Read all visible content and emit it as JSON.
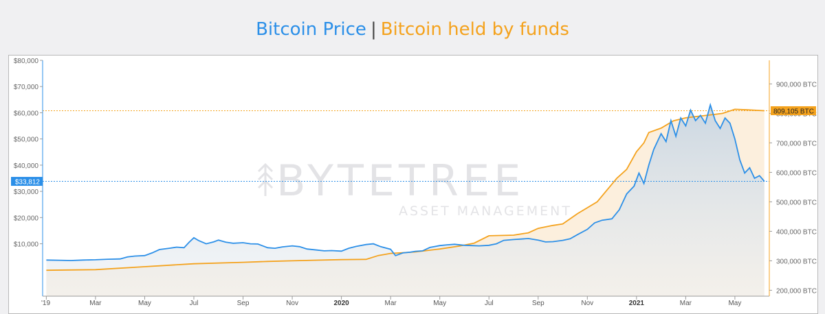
{
  "header": {
    "title_left": "Bitcoin Price",
    "separator": "|",
    "title_right": "Bitcoin held by funds"
  },
  "watermark": {
    "brand": "BYTETREE",
    "subtitle": "ASSET MANAGEMENT"
  },
  "colors": {
    "price": "#2b8fe8",
    "holdings": "#f4a21d",
    "holdings_fill": "#fbe9d2",
    "price_fill": "#d7e0e8"
  },
  "chart_data": {
    "type": "line",
    "title": "Bitcoin Price | Bitcoin held by funds",
    "x_ticks": [
      {
        "label": "'19",
        "t": 0
      },
      {
        "label": "Mar",
        "t": 2
      },
      {
        "label": "May",
        "t": 4
      },
      {
        "label": "Jul",
        "t": 6
      },
      {
        "label": "Sep",
        "t": 8
      },
      {
        "label": "Nov",
        "t": 10
      },
      {
        "label": "2020",
        "t": 12,
        "bold": true
      },
      {
        "label": "Mar",
        "t": 14
      },
      {
        "label": "May",
        "t": 16
      },
      {
        "label": "Jul",
        "t": 18
      },
      {
        "label": "Sep",
        "t": 20
      },
      {
        "label": "Nov",
        "t": 22
      },
      {
        "label": "2021",
        "t": 24,
        "bold": true
      },
      {
        "label": "Mar",
        "t": 26
      },
      {
        "label": "May",
        "t": 28
      }
    ],
    "x_range": [
      -0.15,
      29.4
    ],
    "left_axis": {
      "range": [
        -10000,
        80000
      ],
      "ticks": [
        10000,
        20000,
        30000,
        40000,
        50000,
        60000,
        70000,
        80000
      ],
      "tick_labels": [
        "$10,000",
        "$20,000",
        "$30,000",
        "$40,000",
        "$50,000",
        "$60,000",
        "$70,000",
        "$80,000"
      ]
    },
    "right_axis": {
      "range": [
        180000,
        980000
      ],
      "ticks": [
        200000,
        300000,
        400000,
        500000,
        600000,
        700000,
        800000,
        900000
      ],
      "tick_labels": [
        "200,000 BTC",
        "300,000 BTC",
        "400,000 BTC",
        "500,000 BTC",
        "600,000 BTC",
        "700,000 BTC",
        "800,000 BTC",
        "900,000 BTC"
      ]
    },
    "current_price": {
      "label": "$33,812",
      "value": 33812
    },
    "current_holdings": {
      "label": "809,105 BTC",
      "value": 809105
    },
    "series": [
      {
        "name": "Bitcoin Price",
        "axis": "left",
        "points": [
          [
            0,
            3800
          ],
          [
            0.5,
            3700
          ],
          [
            1,
            3600
          ],
          [
            1.5,
            3800
          ],
          [
            2,
            3900
          ],
          [
            2.5,
            4100
          ],
          [
            3,
            4200
          ],
          [
            3.3,
            5000
          ],
          [
            3.6,
            5300
          ],
          [
            4,
            5500
          ],
          [
            4.3,
            6500
          ],
          [
            4.6,
            7800
          ],
          [
            5,
            8300
          ],
          [
            5.3,
            8700
          ],
          [
            5.6,
            8500
          ],
          [
            5.8,
            10500
          ],
          [
            6,
            12300
          ],
          [
            6.2,
            11200
          ],
          [
            6.5,
            10000
          ],
          [
            6.8,
            10700
          ],
          [
            7,
            11400
          ],
          [
            7.3,
            10600
          ],
          [
            7.6,
            10200
          ],
          [
            8,
            10400
          ],
          [
            8.3,
            10000
          ],
          [
            8.6,
            9900
          ],
          [
            9,
            8500
          ],
          [
            9.3,
            8300
          ],
          [
            9.6,
            8800
          ],
          [
            10,
            9200
          ],
          [
            10.3,
            8900
          ],
          [
            10.6,
            8000
          ],
          [
            11,
            7600
          ],
          [
            11.3,
            7300
          ],
          [
            11.6,
            7400
          ],
          [
            12,
            7200
          ],
          [
            12.3,
            8300
          ],
          [
            12.6,
            9000
          ],
          [
            13,
            9700
          ],
          [
            13.3,
            10000
          ],
          [
            13.6,
            8900
          ],
          [
            14,
            7900
          ],
          [
            14.2,
            5500
          ],
          [
            14.5,
            6500
          ],
          [
            14.8,
            6800
          ],
          [
            15,
            7100
          ],
          [
            15.3,
            7300
          ],
          [
            15.6,
            8600
          ],
          [
            16,
            9300
          ],
          [
            16.3,
            9600
          ],
          [
            16.6,
            9800
          ],
          [
            17,
            9400
          ],
          [
            17.3,
            9300
          ],
          [
            17.6,
            9200
          ],
          [
            18,
            9400
          ],
          [
            18.3,
            10000
          ],
          [
            18.6,
            11300
          ],
          [
            19,
            11600
          ],
          [
            19.3,
            11800
          ],
          [
            19.6,
            12000
          ],
          [
            20,
            11400
          ],
          [
            20.3,
            10700
          ],
          [
            20.6,
            10800
          ],
          [
            21,
            11300
          ],
          [
            21.3,
            11900
          ],
          [
            21.6,
            13500
          ],
          [
            22,
            15500
          ],
          [
            22.3,
            18000
          ],
          [
            22.6,
            19000
          ],
          [
            23,
            19500
          ],
          [
            23.3,
            23000
          ],
          [
            23.6,
            29000
          ],
          [
            23.9,
            32000
          ],
          [
            24.1,
            37000
          ],
          [
            24.3,
            33000
          ],
          [
            24.5,
            40000
          ],
          [
            24.7,
            46000
          ],
          [
            25,
            52000
          ],
          [
            25.2,
            49000
          ],
          [
            25.4,
            57000
          ],
          [
            25.6,
            51000
          ],
          [
            25.8,
            58000
          ],
          [
            26,
            55000
          ],
          [
            26.2,
            61000
          ],
          [
            26.4,
            57000
          ],
          [
            26.6,
            59000
          ],
          [
            26.8,
            56000
          ],
          [
            27,
            63000
          ],
          [
            27.2,
            57000
          ],
          [
            27.4,
            54000
          ],
          [
            27.6,
            58000
          ],
          [
            27.8,
            56000
          ],
          [
            28,
            50000
          ],
          [
            28.2,
            42000
          ],
          [
            28.4,
            37000
          ],
          [
            28.6,
            39000
          ],
          [
            28.8,
            35000
          ],
          [
            29,
            36000
          ],
          [
            29.2,
            33812
          ]
        ]
      },
      {
        "name": "Bitcoin held by funds",
        "axis": "right",
        "points": [
          [
            0,
            268000
          ],
          [
            2,
            270000
          ],
          [
            4,
            280000
          ],
          [
            6,
            290000
          ],
          [
            8,
            295000
          ],
          [
            9,
            298000
          ],
          [
            10,
            300000
          ],
          [
            11,
            302000
          ],
          [
            12,
            304000
          ],
          [
            13,
            305000
          ],
          [
            13.5,
            318000
          ],
          [
            14,
            325000
          ],
          [
            15,
            330000
          ],
          [
            16,
            340000
          ],
          [
            16.8,
            350000
          ],
          [
            17.4,
            360000
          ],
          [
            18,
            385000
          ],
          [
            19,
            387000
          ],
          [
            19.6,
            395000
          ],
          [
            20,
            410000
          ],
          [
            20.6,
            420000
          ],
          [
            21,
            425000
          ],
          [
            21.6,
            460000
          ],
          [
            22,
            480000
          ],
          [
            22.4,
            500000
          ],
          [
            22.8,
            540000
          ],
          [
            23.2,
            580000
          ],
          [
            23.6,
            610000
          ],
          [
            24,
            670000
          ],
          [
            24.3,
            700000
          ],
          [
            24.5,
            735000
          ],
          [
            25,
            750000
          ],
          [
            25.5,
            775000
          ],
          [
            26,
            785000
          ],
          [
            26.5,
            790000
          ],
          [
            27,
            795000
          ],
          [
            27.5,
            800000
          ],
          [
            28,
            814000
          ],
          [
            28.5,
            812000
          ],
          [
            29.2,
            809105
          ]
        ]
      }
    ]
  }
}
